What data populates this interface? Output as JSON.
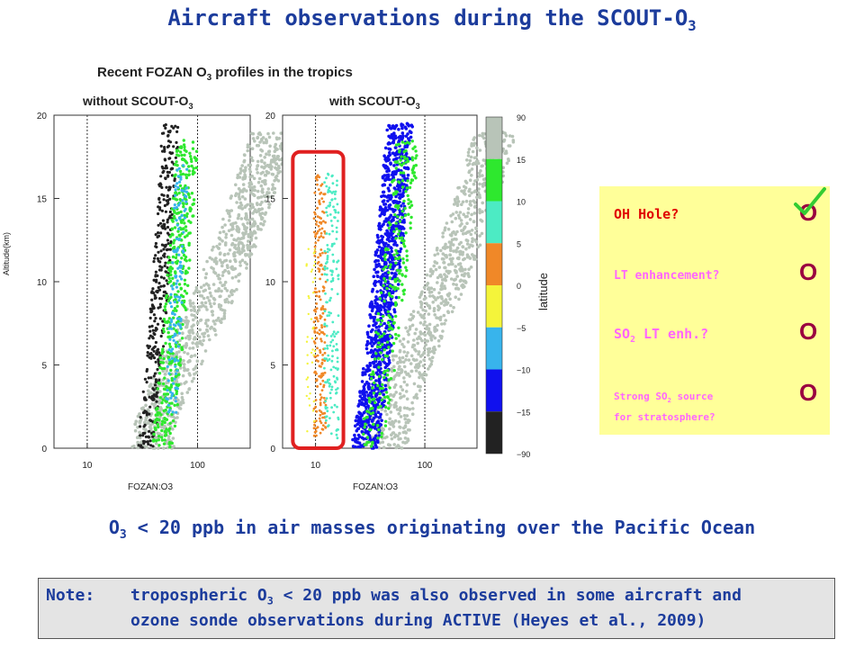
{
  "title": "Aircraft observations during the SCOUT-O",
  "title_sub": "3",
  "figure": {
    "heading": "Recent FOZAN O",
    "heading_sub": "3",
    "heading_rest": " profiles in the tropics",
    "left_label": "without SCOUT-O",
    "left_label_sub": "3",
    "right_label": "with SCOUT-O",
    "right_label_sub": "3",
    "ylabel": "Altitude(km)",
    "xlabel": "FOZAN:O3",
    "colorbar_label": "latitude",
    "colorbar_ticks": [
      "90",
      "15",
      "10",
      "5",
      "0",
      "−5",
      "−10",
      "−15",
      "−90"
    ]
  },
  "chart_data": [
    {
      "type": "scatter",
      "panel": "without SCOUT-O3",
      "xlabel": "FOZAN:O3",
      "ylabel": "Altitude(km)",
      "x_scale": "log",
      "xlim": [
        5,
        300
      ],
      "ylim": [
        0,
        20
      ],
      "x_ticks": [
        10,
        100
      ],
      "y_ticks": [
        0,
        5,
        10,
        15,
        20
      ],
      "reference_lines_x": [
        10,
        100
      ]
    },
    {
      "type": "scatter",
      "panel": "with SCOUT-O3",
      "xlabel": "FOZAN:O3",
      "ylabel": "Altitude(km)",
      "x_scale": "log",
      "xlim": [
        5,
        300
      ],
      "ylim": [
        0,
        20
      ],
      "x_ticks": [
        10,
        100
      ],
      "y_ticks": [
        0,
        5,
        10,
        15,
        20
      ],
      "reference_lines_x": [
        10,
        100
      ],
      "highlight_box_x": [
        6.2,
        18
      ],
      "highlight_box_y": [
        0,
        17.8
      ]
    }
  ],
  "colorbar": {
    "bands": [
      {
        "label": "15 to 90",
        "color": "#b8c4b8"
      },
      {
        "label": "10 to 15",
        "color": "#2ee82e"
      },
      {
        "label": "5 to 10",
        "color": "#4cebc4"
      },
      {
        "label": "0 to 5",
        "color": "#f08828"
      },
      {
        "label": "-5 to 0",
        "color": "#f4f43a"
      },
      {
        "label": "-10 to -5",
        "color": "#38b4ec"
      },
      {
        "label": "-15 to -10",
        "color": "#1010ee"
      },
      {
        "label": "-90 to -15",
        "color": "#222222"
      }
    ]
  },
  "checklist": {
    "items": [
      {
        "label": "OH Hole?",
        "sub": "",
        "rest": "",
        "color": "#e00000",
        "size": 15,
        "mark": "O",
        "checked": true
      },
      {
        "label": "LT enhancement?",
        "sub": "",
        "rest": "",
        "color": "#ff66ff",
        "size": 13,
        "mark": "O",
        "checked": false
      },
      {
        "label": "SO",
        "sub": "2",
        "rest": " LT enh.?",
        "color": "#ff66ff",
        "size": 15,
        "mark": "O",
        "checked": false
      },
      {
        "label": "Strong SO",
        "sub": "2",
        "rest": " source",
        "label2": "for stratosphere?",
        "color": "#ff66ff",
        "size": 11,
        "mark": "O",
        "checked": false
      }
    ],
    "check_color": "#33cc33"
  },
  "conclusion": {
    "pre": "O",
    "sub": "3",
    "rest": " < 20 ppb in air masses originating over the Pacific Ocean"
  },
  "note": {
    "label": "Note:",
    "line1_pre": "tropospheric O",
    "line1_sub": "3",
    "line1_rest": " < 20 ppb was also observed in some aircraft and",
    "line2": "ozone sonde observations during ACTIVE (Heyes et al., 2009)"
  }
}
